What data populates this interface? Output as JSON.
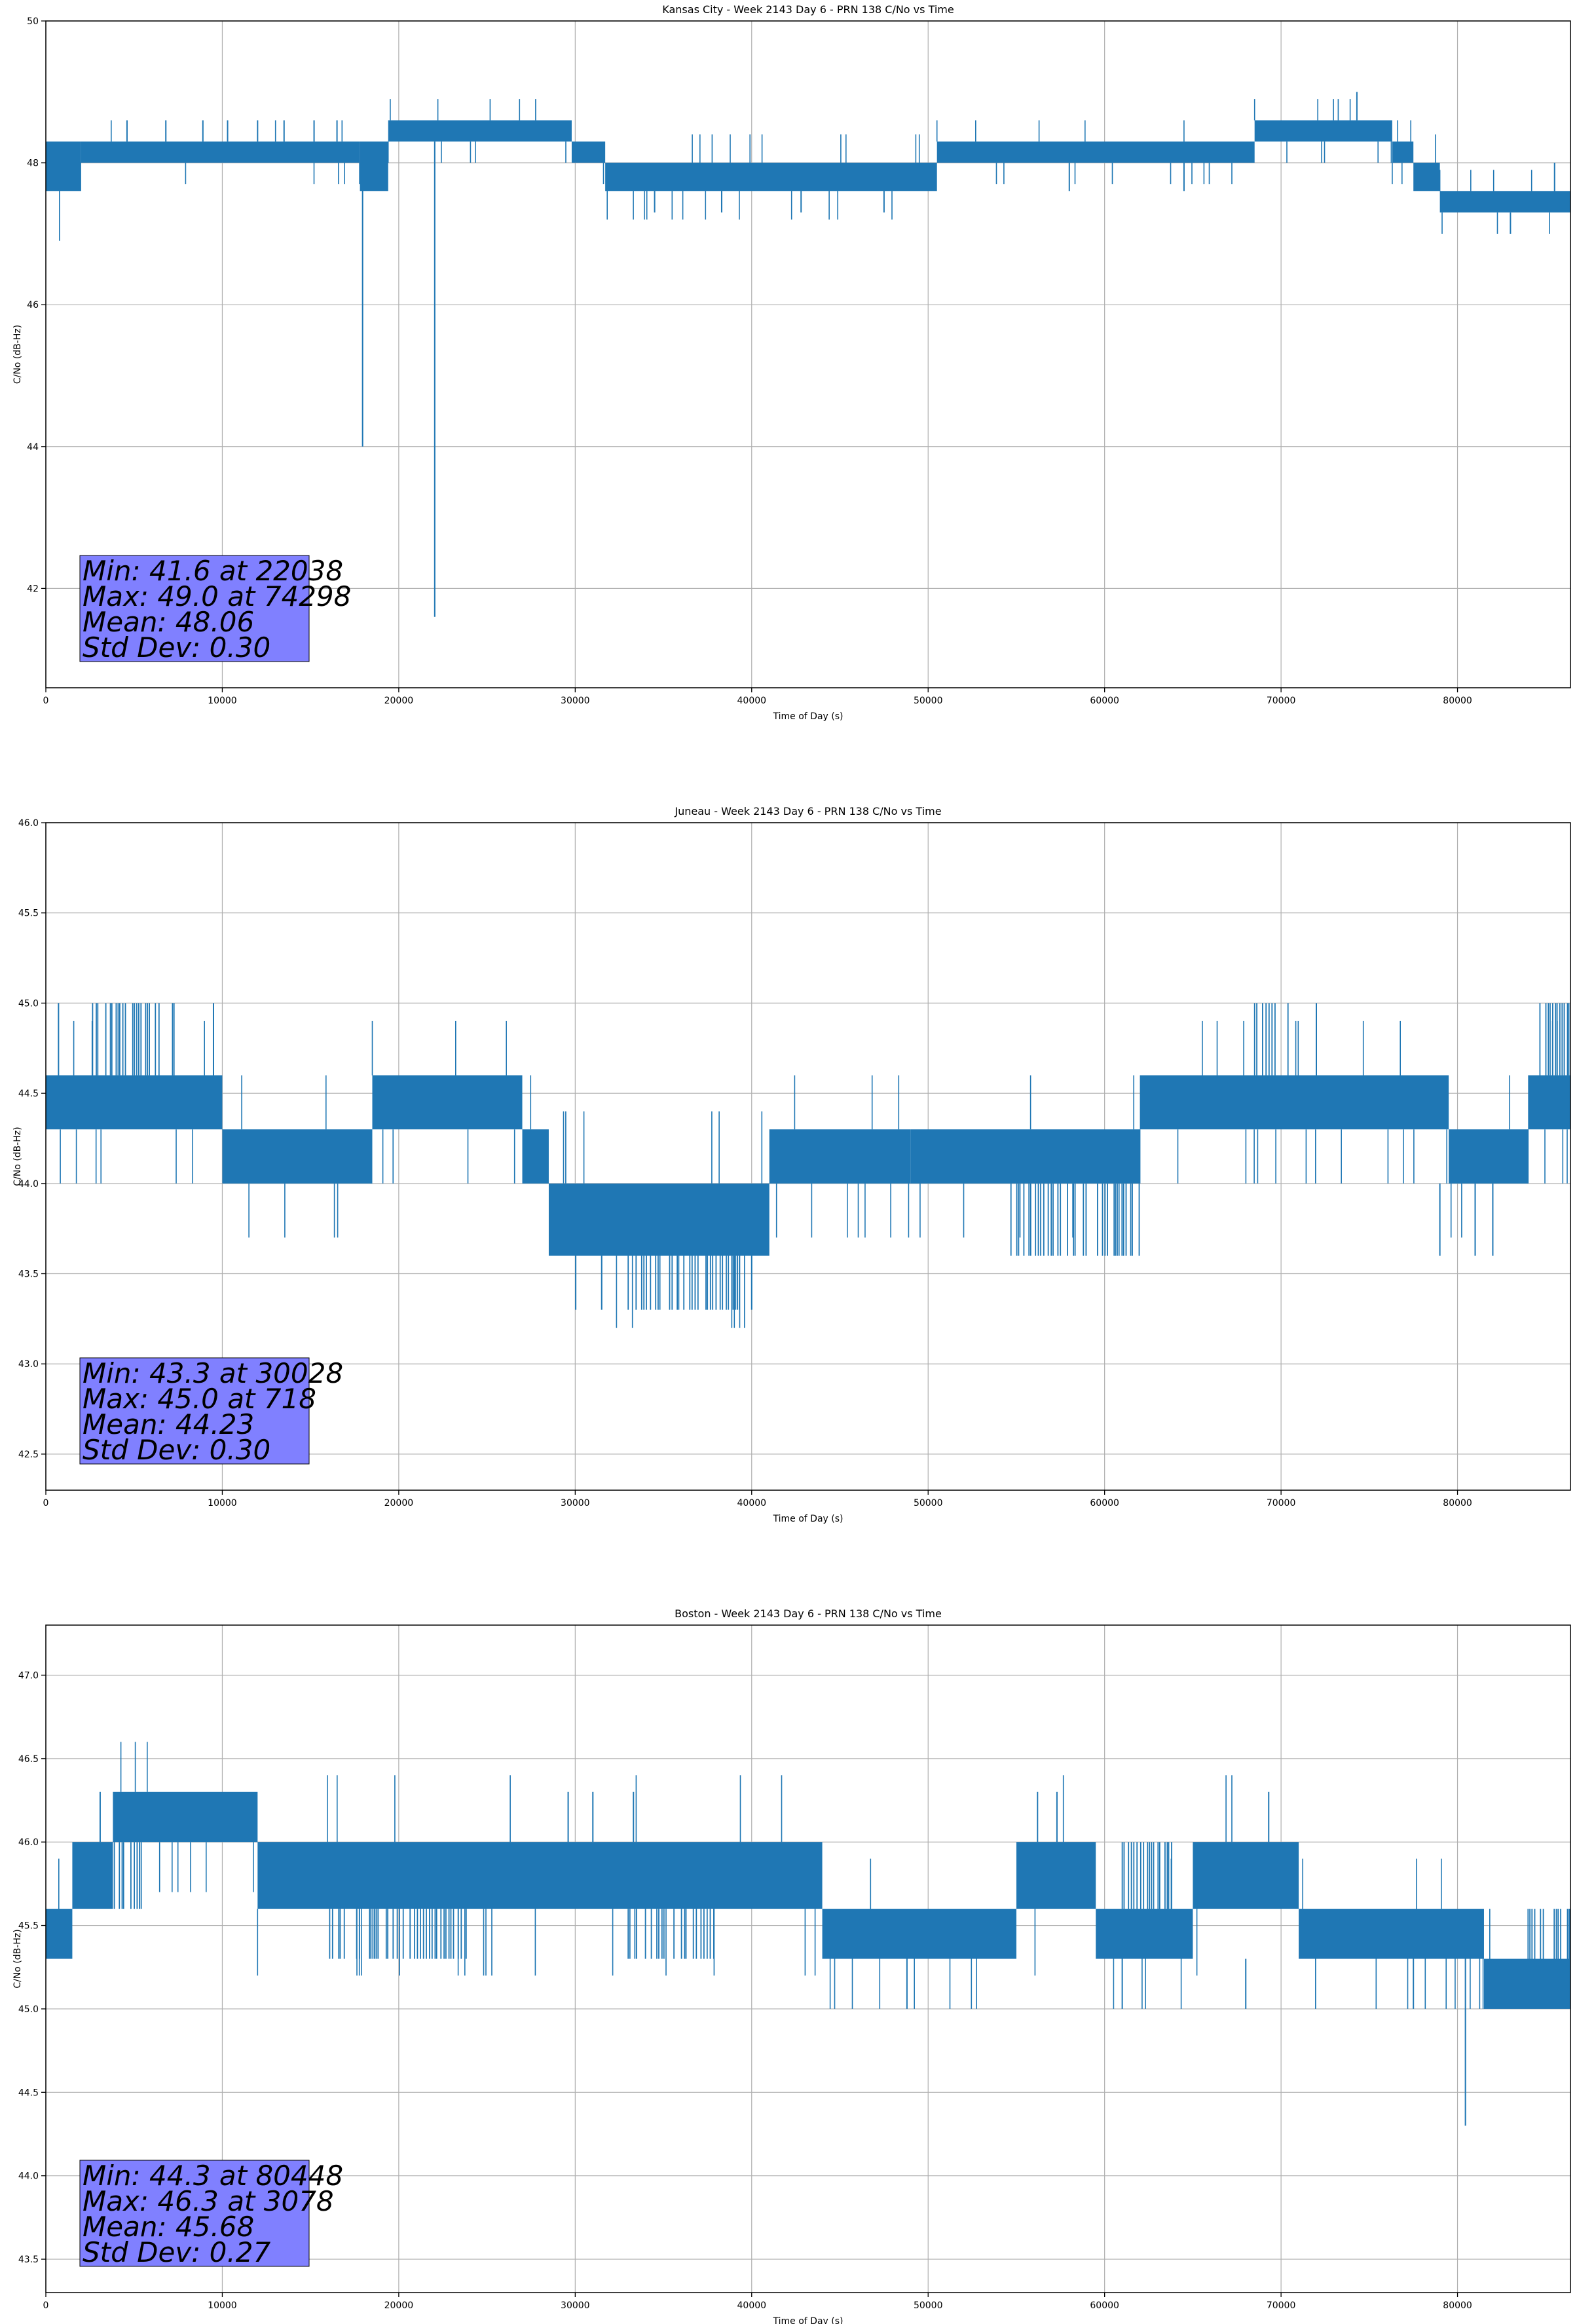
{
  "chart_data": [
    {
      "type": "line",
      "title": "Kansas City - Week 2143 Day 6 - PRN 138 C/No vs Time",
      "xlabel": "Time of Day (s)",
      "ylabel": "C/No (dB-Hz)",
      "xlim": [
        0,
        86400
      ],
      "ylim": [
        40.6,
        50
      ],
      "xticks": [
        0,
        10000,
        20000,
        30000,
        40000,
        50000,
        60000,
        70000,
        80000
      ],
      "xtick_labels": [
        "0",
        "10000",
        "20000",
        "30000",
        "40000",
        "50000",
        "60000",
        "70000",
        "80000"
      ],
      "yticks": [
        42,
        44,
        46,
        48,
        50
      ],
      "ytick_labels": [
        "42",
        "44",
        "46",
        "48",
        "50"
      ],
      "grid": true,
      "color": "#1f77b4",
      "series": [
        {
          "name": "C/No",
          "segments": [
            {
              "x": [
                0,
                2000
              ],
              "low": 47.6,
              "high": 48.3
            },
            {
              "x": [
                2000,
                17800
              ],
              "low": 48.0,
              "high": 48.3
            },
            {
              "x": [
                17800,
                19400
              ],
              "low": 47.6,
              "high": 48.3
            },
            {
              "x": [
                19400,
                29800
              ],
              "low": 48.3,
              "high": 48.6
            },
            {
              "x": [
                29800,
                31700
              ],
              "low": 48.0,
              "high": 48.3
            },
            {
              "x": [
                31700,
                50500
              ],
              "low": 47.6,
              "high": 48.0
            },
            {
              "x": [
                50500,
                68500
              ],
              "low": 48.0,
              "high": 48.3
            },
            {
              "x": [
                68500,
                76300
              ],
              "low": 48.3,
              "high": 48.6
            },
            {
              "x": [
                76300,
                77500
              ],
              "low": 48.0,
              "high": 48.3
            },
            {
              "x": [
                77500,
                79000
              ],
              "low": 47.6,
              "high": 48.0
            },
            {
              "x": [
                79000,
                86400
              ],
              "low": 47.3,
              "high": 47.6
            }
          ],
          "spikes": [
            {
              "x": 4600,
              "low": 48.3,
              "high": 48.6
            },
            {
              "x": 6800,
              "low": 48.3,
              "high": 48.6
            },
            {
              "x": 8900,
              "low": 48.3,
              "high": 48.6
            },
            {
              "x": 10300,
              "low": 48.3,
              "high": 48.6
            },
            {
              "x": 12000,
              "low": 48.3,
              "high": 48.6
            },
            {
              "x": 13500,
              "low": 48.3,
              "high": 48.6
            },
            {
              "x": 15200,
              "low": 48.3,
              "high": 48.6
            },
            {
              "x": 16500,
              "low": 48.3,
              "high": 48.6
            },
            {
              "x": 17950,
              "low": 44.0,
              "high": 48.0
            },
            {
              "x": 22038,
              "low": 41.6,
              "high": 48.3
            },
            {
              "x": 34500,
              "low": 47.3,
              "high": 47.6
            },
            {
              "x": 38300,
              "low": 47.3,
              "high": 47.6
            },
            {
              "x": 42800,
              "low": 47.3,
              "high": 47.6
            },
            {
              "x": 47500,
              "low": 47.3,
              "high": 47.6
            },
            {
              "x": 58000,
              "low": 47.6,
              "high": 48.0
            },
            {
              "x": 64500,
              "low": 47.6,
              "high": 48.0
            },
            {
              "x": 74298,
              "low": 48.6,
              "high": 49.0
            },
            {
              "x": 83000,
              "low": 47.0,
              "high": 47.3
            },
            {
              "x": 85500,
              "low": 47.6,
              "high": 48.0
            }
          ]
        }
      ],
      "stats_box": {
        "lines": [
          "Min: 41.6 at 22038",
          "Max: 49.0 at 74298",
          "Mean: 48.06",
          "Std Dev: 0.30"
        ],
        "color": "#8080ff"
      }
    },
    {
      "type": "line",
      "title": "Juneau - Week 2143 Day 6 - PRN 138 C/No vs Time",
      "xlabel": "Time of Day (s)",
      "ylabel": "C/No (dB-Hz)",
      "xlim": [
        0,
        86400
      ],
      "ylim": [
        42.3,
        46.0
      ],
      "xticks": [
        0,
        10000,
        20000,
        30000,
        40000,
        50000,
        60000,
        70000,
        80000
      ],
      "xtick_labels": [
        "0",
        "10000",
        "20000",
        "30000",
        "40000",
        "50000",
        "60000",
        "70000",
        "80000"
      ],
      "yticks": [
        42.5,
        43.0,
        43.5,
        44.0,
        44.5,
        45.0,
        45.5,
        46.0
      ],
      "ytick_labels": [
        "42.5",
        "43.0",
        "43.5",
        "44.0",
        "44.5",
        "45.0",
        "45.5",
        "46.0"
      ],
      "grid": true,
      "color": "#1f77b4",
      "series": [
        {
          "name": "C/No",
          "segments": [
            {
              "x": [
                0,
                10000
              ],
              "low": 44.3,
              "high": 44.6
            },
            {
              "x": [
                10000,
                18500
              ],
              "low": 44.0,
              "high": 44.3
            },
            {
              "x": [
                18500,
                27000
              ],
              "low": 44.3,
              "high": 44.6
            },
            {
              "x": [
                27000,
                28500
              ],
              "low": 44.0,
              "high": 44.3
            },
            {
              "x": [
                28500,
                41000
              ],
              "low": 43.6,
              "high": 44.0
            },
            {
              "x": [
                41000,
                49000
              ],
              "low": 44.0,
              "high": 44.3
            },
            {
              "x": [
                49000,
                62000
              ],
              "low": 44.0,
              "high": 44.3
            },
            {
              "x": [
                62000,
                79500
              ],
              "low": 44.3,
              "high": 44.6
            },
            {
              "x": [
                79500,
                84000
              ],
              "low": 44.0,
              "high": 44.3
            },
            {
              "x": [
                84000,
                86400
              ],
              "low": 44.3,
              "high": 44.6
            }
          ],
          "blocks": [
            {
              "x": [
                2500,
                7500
              ],
              "low": 44.6,
              "high": 45.0
            },
            {
              "x": [
                33000,
                39500
              ],
              "low": 43.3,
              "high": 43.6
            },
            {
              "x": [
                54500,
                62000
              ],
              "low": 43.6,
              "high": 44.0
            },
            {
              "x": [
                68500,
                70500
              ],
              "low": 44.6,
              "high": 45.0
            },
            {
              "x": [
                84500,
                86400
              ],
              "low": 44.6,
              "high": 45.0
            }
          ],
          "spikes": [
            {
              "x": 718,
              "low": 44.6,
              "high": 45.0
            },
            {
              "x": 9500,
              "low": 44.6,
              "high": 45.0
            },
            {
              "x": 30028,
              "low": 43.3,
              "high": 43.6
            },
            {
              "x": 31500,
              "low": 43.3,
              "high": 43.6
            },
            {
              "x": 40000,
              "low": 43.3,
              "high": 43.6
            },
            {
              "x": 72000,
              "low": 44.6,
              "high": 45.0
            },
            {
              "x": 79000,
              "low": 43.6,
              "high": 44.0
            },
            {
              "x": 81000,
              "low": 43.6,
              "high": 44.0
            },
            {
              "x": 82000,
              "low": 43.6,
              "high": 44.0
            }
          ]
        }
      ],
      "stats_box": {
        "lines": [
          "Min: 43.3 at 30028",
          "Max: 45.0 at 718",
          "Mean: 44.23",
          "Std Dev: 0.30"
        ],
        "color": "#8080ff"
      }
    },
    {
      "type": "line",
      "title": "Boston - Week 2143 Day 6 - PRN 138 C/No vs Time",
      "xlabel": "Time of Day (s)",
      "ylabel": "C/No (dB-Hz)",
      "xlim": [
        0,
        86400
      ],
      "ylim": [
        43.3,
        47.3
      ],
      "xticks": [
        0,
        10000,
        20000,
        30000,
        40000,
        50000,
        60000,
        70000,
        80000
      ],
      "xtick_labels": [
        "0",
        "10000",
        "20000",
        "30000",
        "40000",
        "50000",
        "60000",
        "70000",
        "80000"
      ],
      "yticks": [
        43.5,
        44.0,
        44.5,
        45.0,
        45.5,
        46.0,
        46.5,
        47.0
      ],
      "ytick_labels": [
        "43.5",
        "44.0",
        "44.5",
        "45.0",
        "45.5",
        "46.0",
        "46.5",
        "47.0"
      ],
      "grid": true,
      "color": "#1f77b4",
      "series": [
        {
          "name": "C/No",
          "segments": [
            {
              "x": [
                0,
                1500
              ],
              "low": 45.3,
              "high": 45.6
            },
            {
              "x": [
                1500,
                3800
              ],
              "low": 45.6,
              "high": 46.0
            },
            {
              "x": [
                3800,
                12000
              ],
              "low": 46.0,
              "high": 46.3
            },
            {
              "x": [
                12000,
                18000
              ],
              "low": 45.6,
              "high": 46.0
            },
            {
              "x": [
                18000,
                44000
              ],
              "low": 45.6,
              "high": 46.0
            },
            {
              "x": [
                44000,
                55000
              ],
              "low": 45.3,
              "high": 45.6
            },
            {
              "x": [
                55000,
                59500
              ],
              "low": 45.6,
              "high": 46.0
            },
            {
              "x": [
                59500,
                65000
              ],
              "low": 45.3,
              "high": 45.6
            },
            {
              "x": [
                65000,
                71000
              ],
              "low": 45.6,
              "high": 46.0
            },
            {
              "x": [
                71000,
                81500
              ],
              "low": 45.3,
              "high": 45.6
            },
            {
              "x": [
                81500,
                86400
              ],
              "low": 45.0,
              "high": 45.3
            }
          ],
          "blocks": [
            {
              "x": [
                3800,
                5600
              ],
              "low": 45.6,
              "high": 46.0
            },
            {
              "x": [
                16000,
                24000
              ],
              "low": 45.3,
              "high": 45.6
            },
            {
              "x": [
                33000,
                38000
              ],
              "low": 45.3,
              "high": 45.6
            },
            {
              "x": [
                61000,
                64000
              ],
              "low": 45.6,
              "high": 46.0
            },
            {
              "x": [
                84000,
                86400
              ],
              "low": 45.3,
              "high": 45.6
            }
          ],
          "spikes": [
            {
              "x": 3078,
              "low": 46.0,
              "high": 46.3
            },
            {
              "x": 29600,
              "low": 46.0,
              "high": 46.3
            },
            {
              "x": 31000,
              "low": 46.0,
              "high": 46.3
            },
            {
              "x": 33300,
              "low": 46.0,
              "high": 46.3
            },
            {
              "x": 48800,
              "low": 45.0,
              "high": 45.3
            },
            {
              "x": 56200,
              "low": 46.0,
              "high": 46.3
            },
            {
              "x": 57300,
              "low": 46.0,
              "high": 46.3
            },
            {
              "x": 61000,
              "low": 45.0,
              "high": 45.3
            },
            {
              "x": 68000,
              "low": 45.0,
              "high": 45.3
            },
            {
              "x": 69300,
              "low": 46.0,
              "high": 46.3
            },
            {
              "x": 77500,
              "low": 45.0,
              "high": 45.3
            },
            {
              "x": 80448,
              "low": 44.3,
              "high": 45.3
            }
          ]
        }
      ],
      "stats_box": {
        "lines": [
          "Min: 44.3 at 80448",
          "Max: 46.3 at 3078",
          "Mean: 45.68",
          "Std Dev: 0.27"
        ],
        "color": "#8080ff"
      }
    }
  ]
}
